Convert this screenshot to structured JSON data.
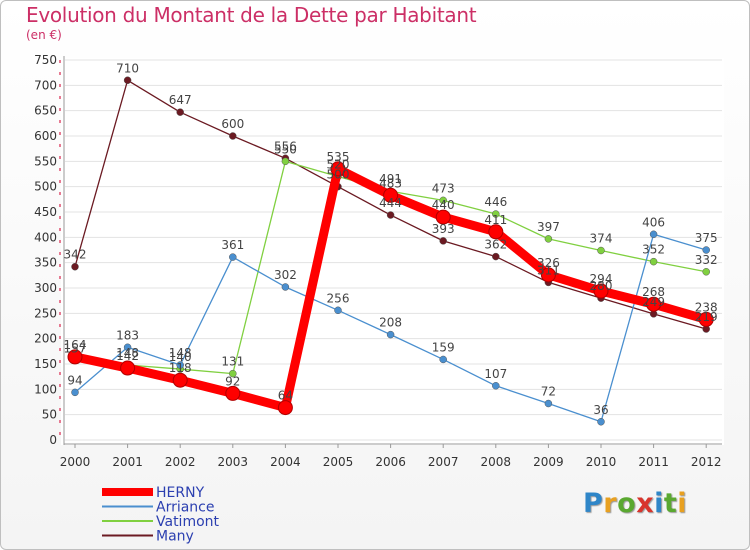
{
  "title": "Evolution du Montant de la Dette par Habitant",
  "subtitle": "(en €)",
  "logo": [
    "P",
    "r",
    "o",
    "x",
    "i",
    "t",
    "i"
  ],
  "logo_colors": [
    "#2f86c8",
    "#e8a020",
    "#5aa830",
    "#d8342c",
    "#2f86c8",
    "#5aa830",
    "#e8a020"
  ],
  "chart_data": {
    "type": "line",
    "title": "Evolution du Montant de la Dette par Habitant",
    "subtitle": "(en €)",
    "ylim": [
      0,
      750
    ],
    "yticks": [
      0,
      50,
      100,
      150,
      200,
      250,
      300,
      350,
      400,
      450,
      500,
      550,
      600,
      650,
      700,
      750
    ],
    "categories": [
      "2000",
      "2001",
      "2002",
      "2003",
      "2004",
      "2005",
      "2006",
      "2007",
      "2008",
      "2009",
      "2010",
      "2011",
      "2012"
    ],
    "legend_position": "bottom-left",
    "series": [
      {
        "name": "HERNY",
        "color": "#ff0000",
        "values": [
          164,
          142,
          118,
          92,
          64,
          535,
          483,
          440,
          411,
          326,
          294,
          268,
          238
        ]
      },
      {
        "name": "Arriance",
        "color": "#4a8fcf",
        "values": [
          94,
          183,
          148,
          361,
          302,
          256,
          208,
          159,
          107,
          72,
          36,
          406,
          375
        ]
      },
      {
        "name": "Vatimont",
        "color": "#80d040",
        "values": [
          157,
          148,
          140,
          131,
          550,
          520,
          491,
          473,
          446,
          397,
          374,
          352,
          332
        ]
      },
      {
        "name": "Many",
        "color": "#6b1a22",
        "values": [
          342,
          710,
          647,
          600,
          556,
          500,
          444,
          393,
          362,
          311,
          280,
          249,
          219
        ]
      }
    ]
  }
}
